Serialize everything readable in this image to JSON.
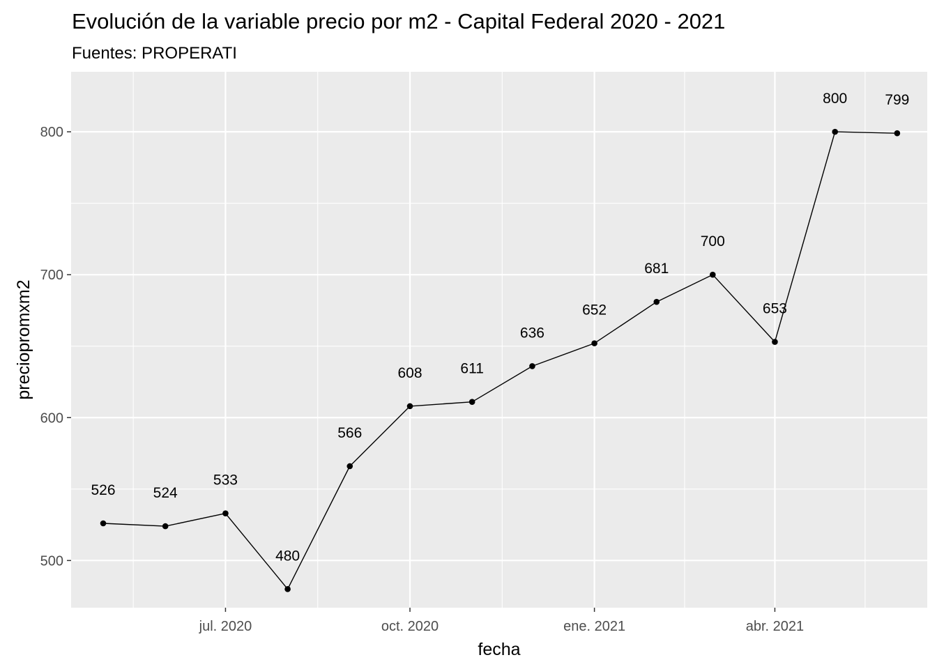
{
  "chart_data": {
    "type": "line",
    "title": "Evolución de la variable precio por m2 - Capital Federal 2020 - 2021",
    "subtitle": "Fuentes: PROPERATI",
    "xlabel": "fecha",
    "ylabel": "preciopromxm2",
    "x": [
      "2020-05-01",
      "2020-06-01",
      "2020-07-01",
      "2020-08-01",
      "2020-09-01",
      "2020-10-01",
      "2020-11-01",
      "2020-12-01",
      "2021-01-01",
      "2021-02-01",
      "2021-03-01",
      "2021-04-01",
      "2021-05-01",
      "2021-06-01"
    ],
    "values": [
      526,
      524,
      533,
      480,
      566,
      608,
      611,
      636,
      652,
      681,
      700,
      653,
      800,
      799
    ],
    "data_labels": [
      "526",
      "524",
      "533",
      "480",
      "566",
      "608",
      "611",
      "636",
      "652",
      "681",
      "700",
      "653",
      "800",
      "799"
    ],
    "xlim": [
      "2020-04-15",
      "2021-06-16"
    ],
    "ylim": [
      467,
      842
    ],
    "x_major_ticks": [
      {
        "date": "2020-07-01",
        "label": "jul. 2020"
      },
      {
        "date": "2020-10-01",
        "label": "oct. 2020"
      },
      {
        "date": "2021-01-01",
        "label": "ene. 2021"
      },
      {
        "date": "2021-04-01",
        "label": "abr. 2021"
      }
    ],
    "x_minor_ticks": [
      "2020-05-16",
      "2020-08-16",
      "2020-11-16",
      "2021-02-15",
      "2021-05-16"
    ],
    "y_major_ticks": [
      {
        "value": 500,
        "label": "500"
      },
      {
        "value": 600,
        "label": "600"
      },
      {
        "value": 700,
        "label": "700"
      },
      {
        "value": 800,
        "label": "800"
      }
    ],
    "y_minor_ticks": [
      550,
      650,
      750
    ],
    "grid": true,
    "legend": "none",
    "colors": {
      "panel": "#ebebeb",
      "grid": "#ffffff",
      "line": "#000000",
      "point": "#000000",
      "tick_text": "#4d4d4d",
      "tick_mark": "#333333"
    }
  }
}
